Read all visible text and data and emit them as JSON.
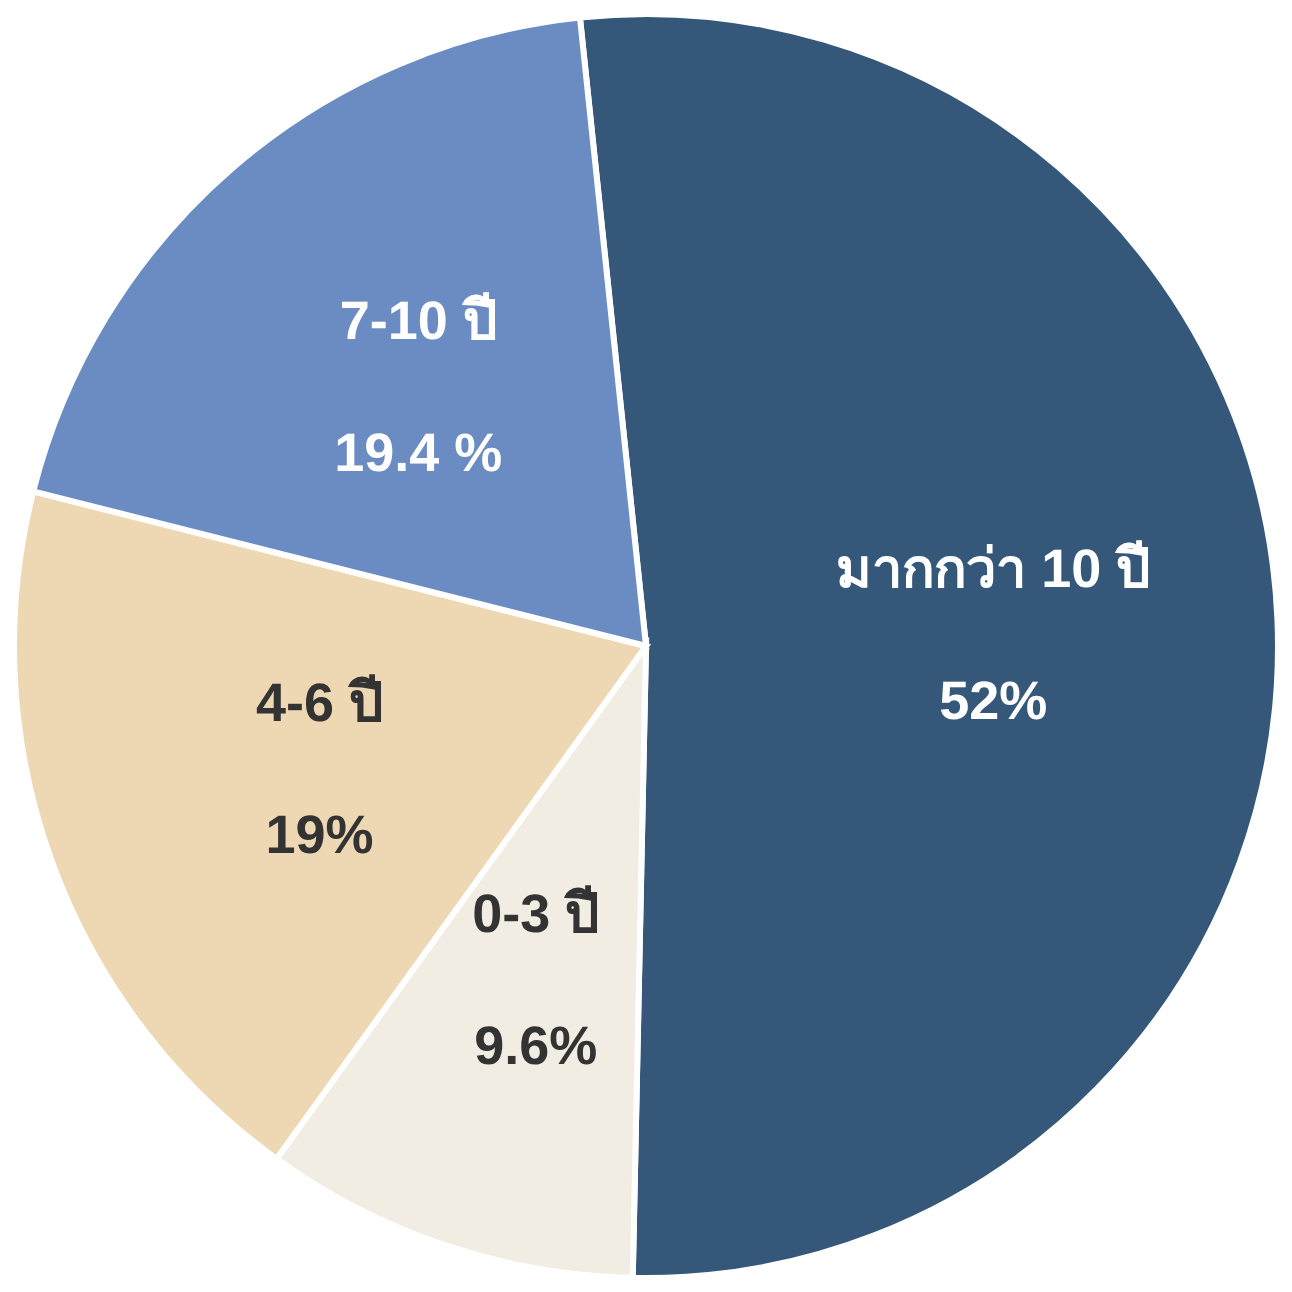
{
  "chart_data": {
    "type": "pie",
    "categories": [
      "มากกว่า 10 ปี",
      "0-3 ปี",
      "4-6 ปี",
      "7-10 ปี"
    ],
    "values": [
      52,
      9.6,
      19,
      19.4
    ],
    "value_labels": [
      "52%",
      "9.6%",
      "19%",
      "19.4 %"
    ],
    "colors": [
      "#35587a",
      "#f1ede3",
      "#eed8b3",
      "#6b8cc2"
    ]
  }
}
